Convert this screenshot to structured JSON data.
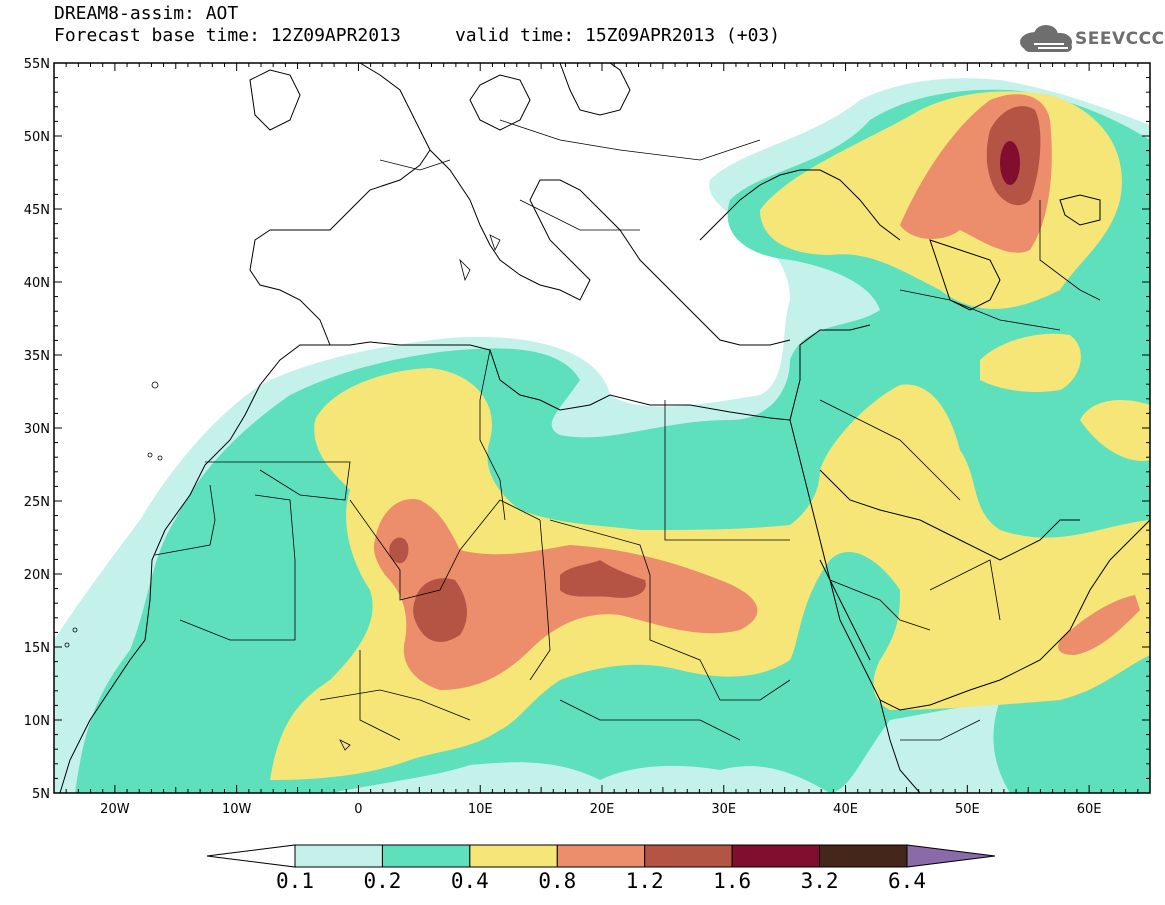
{
  "title": {
    "line1": "DREAM8-assim: AOT",
    "line2": "Forecast base time: 12Z09APR2013     valid time: 15Z09APR2013 (+03)"
  },
  "logo": {
    "text": "SEEVCCC",
    "icon": "cloud-icon"
  },
  "map": {
    "lat_labels": [
      "55N",
      "50N",
      "45N",
      "40N",
      "35N",
      "30N",
      "25N",
      "20N",
      "15N",
      "10N",
      "5N"
    ],
    "lon_labels": [
      "20W",
      "10W",
      "0",
      "10E",
      "20E",
      "30E",
      "40E",
      "50E",
      "60E"
    ],
    "lat_range": [
      5,
      55
    ],
    "lon_range": [
      -25,
      65
    ],
    "variable": "AOT"
  },
  "colorbar": {
    "levels": [
      "0.1",
      "0.2",
      "0.4",
      "0.8",
      "1.2",
      "1.6",
      "3.2",
      "6.4"
    ],
    "colors": [
      "#ffffff",
      "#c4f2ea",
      "#5ee0bc",
      "#f6e677",
      "#ec8e6b",
      "#b45445",
      "#820e2f",
      "#44261b",
      "#8a6aa8"
    ]
  },
  "colors": {
    "c01": "#c4f2ea",
    "c02": "#5ee0bc",
    "c04": "#f6e677",
    "c08": "#ec8e6b",
    "c12": "#b45445",
    "c16": "#820e2f"
  }
}
